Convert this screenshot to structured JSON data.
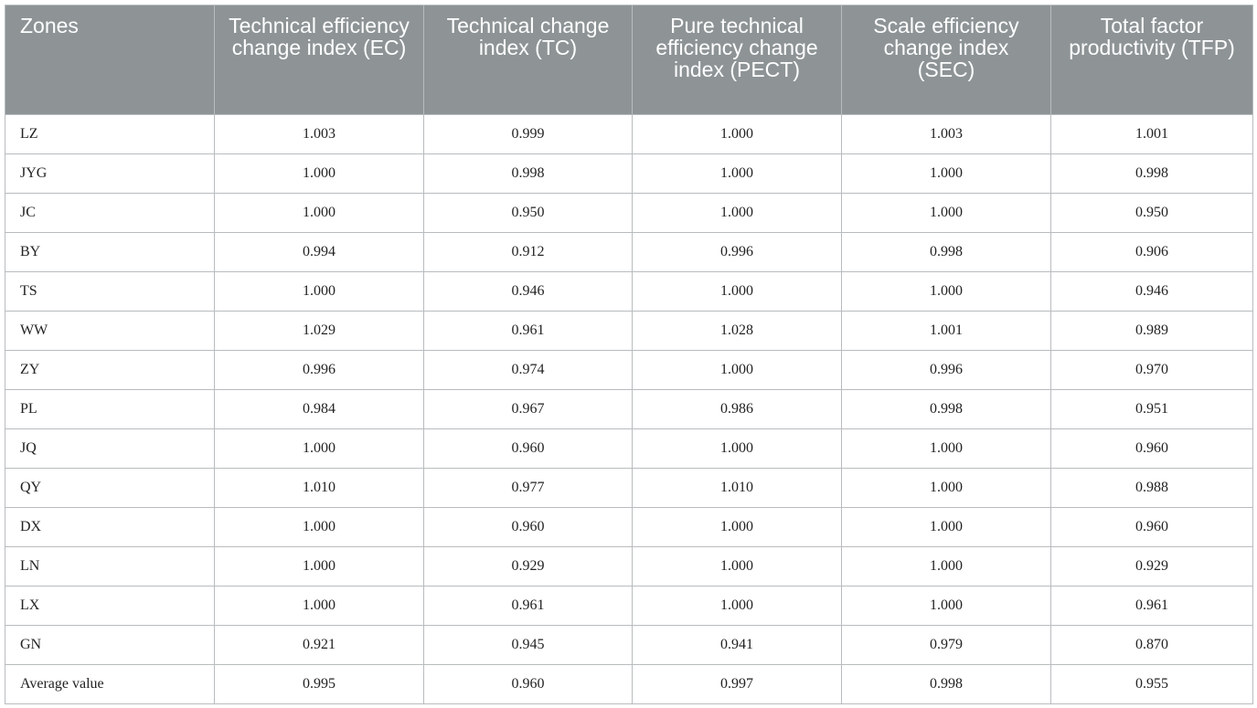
{
  "table": {
    "header": [
      "Zones",
      "Technical efficiency change index (EC)",
      "Technical change index (TC)",
      "Pure technical efficiency change index (PECT)",
      "Scale efficiency change index (SEC)",
      "Total factor productivity (TFP)"
    ],
    "rows": [
      [
        "LZ",
        "1.003",
        "0.999",
        "1.000",
        "1.003",
        "1.001"
      ],
      [
        "JYG",
        "1.000",
        "0.998",
        "1.000",
        "1.000",
        "0.998"
      ],
      [
        "JC",
        "1.000",
        "0.950",
        "1.000",
        "1.000",
        "0.950"
      ],
      [
        "BY",
        "0.994",
        "0.912",
        "0.996",
        "0.998",
        "0.906"
      ],
      [
        "TS",
        "1.000",
        "0.946",
        "1.000",
        "1.000",
        "0.946"
      ],
      [
        "WW",
        "1.029",
        "0.961",
        "1.028",
        "1.001",
        "0.989"
      ],
      [
        "ZY",
        "0.996",
        "0.974",
        "1.000",
        "0.996",
        "0.970"
      ],
      [
        "PL",
        "0.984",
        "0.967",
        "0.986",
        "0.998",
        "0.951"
      ],
      [
        "JQ",
        "1.000",
        "0.960",
        "1.000",
        "1.000",
        "0.960"
      ],
      [
        "QY",
        "1.010",
        "0.977",
        "1.010",
        "1.000",
        "0.988"
      ],
      [
        "DX",
        "1.000",
        "0.960",
        "1.000",
        "1.000",
        "0.960"
      ],
      [
        "LN",
        "1.000",
        "0.929",
        "1.000",
        "1.000",
        "0.929"
      ],
      [
        "LX",
        "1.000",
        "0.961",
        "1.000",
        "1.000",
        "0.961"
      ],
      [
        "GN",
        "0.921",
        "0.945",
        "0.941",
        "0.979",
        "0.870"
      ],
      [
        "Average value",
        "0.995",
        "0.960",
        "0.997",
        "0.998",
        "0.955"
      ]
    ]
  }
}
